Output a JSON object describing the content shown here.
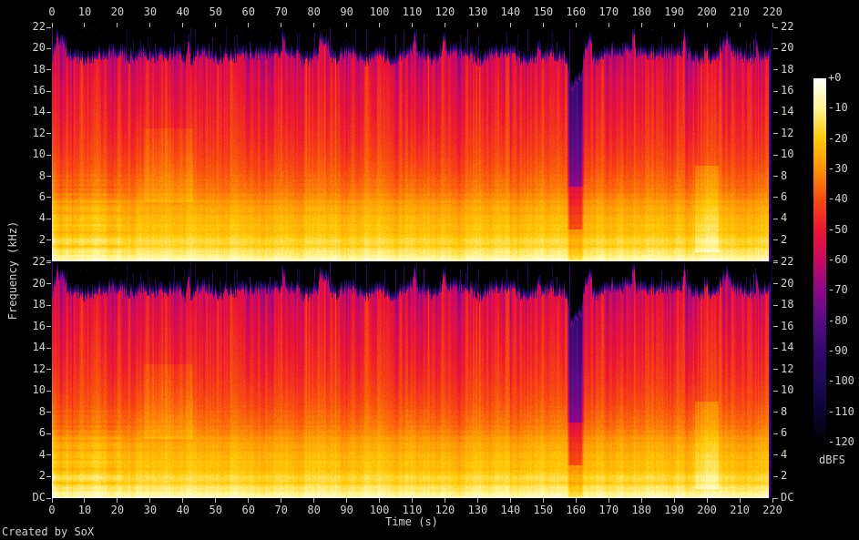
{
  "app": {
    "credit": "Created by SoX"
  },
  "axes": {
    "time": {
      "label": "Time (s)",
      "min": 0,
      "max": 220,
      "tick_step": 10,
      "ticks": [
        0,
        10,
        20,
        30,
        40,
        50,
        60,
        70,
        80,
        90,
        100,
        110,
        120,
        130,
        140,
        150,
        160,
        170,
        180,
        190,
        200,
        210,
        220
      ]
    },
    "frequency": {
      "label": "Frequency (kHz)",
      "min": 0,
      "max": 22,
      "tick_step": 2,
      "dc_label": "DC",
      "panel1_tick_labels": [
        "22",
        "20",
        "18",
        "16",
        "14",
        "12",
        "10",
        "8",
        "6",
        "4",
        "2"
      ],
      "panel2_tick_labels": [
        "22",
        "20",
        "18",
        "16",
        "14",
        "12",
        "10",
        "8",
        "6",
        "4",
        "2",
        "DC"
      ]
    }
  },
  "legend": {
    "unit": "dBFS",
    "ticks": [
      "+0",
      "-10",
      "-20",
      "-30",
      "-40",
      "-50",
      "-60",
      "-70",
      "-80",
      "-90",
      "-100",
      "-110",
      "-120"
    ]
  },
  "chart_data": {
    "type": "heatmap",
    "subtype": "stereo-audio-spectrogram",
    "generator": "SoX",
    "channels": [
      "channel-1",
      "channel-2"
    ],
    "x_axis": {
      "label": "Time (s)",
      "min": 0,
      "max": 220,
      "tick_step": 10
    },
    "y_axis": {
      "label": "Frequency (kHz)",
      "min": 0,
      "max": 22,
      "tick_step": 2,
      "dc_label": "DC"
    },
    "z_axis": {
      "label": "dBFS",
      "min": -120,
      "max": 0,
      "tick_step": 10
    },
    "palette_dbfs_colors": [
      {
        "db": -120,
        "color": "#000000"
      },
      {
        "db": -110,
        "color": "#0b0433"
      },
      {
        "db": -100,
        "color": "#1d0a52"
      },
      {
        "db": -90,
        "color": "#33076c"
      },
      {
        "db": -80,
        "color": "#560d82"
      },
      {
        "db": -70,
        "color": "#8b0789"
      },
      {
        "db": -60,
        "color": "#c90a64"
      },
      {
        "db": -50,
        "color": "#ec1633"
      },
      {
        "db": -40,
        "color": "#f84b10"
      },
      {
        "db": -30,
        "color": "#fd9106"
      },
      {
        "db": -20,
        "color": "#ffc908"
      },
      {
        "db": -10,
        "color": "#fff48e"
      },
      {
        "db": 0,
        "color": "#ffffff"
      }
    ],
    "spectral_profile_db_by_khz": [
      [
        0,
        -4
      ],
      [
        0.5,
        -11
      ],
      [
        1.5,
        -17
      ],
      [
        3,
        -22
      ],
      [
        4.5,
        -26
      ],
      [
        6,
        -31
      ],
      [
        7.5,
        -36
      ],
      [
        9,
        -40
      ],
      [
        11,
        -44
      ],
      [
        13,
        -47
      ],
      [
        15,
        -50
      ],
      [
        17,
        -53
      ],
      [
        18.5,
        -56
      ],
      [
        20,
        -59
      ],
      [
        22,
        -62
      ]
    ],
    "features": {
      "energy_ceiling_khz": 19.1,
      "quiet_gap_seconds": [
        158,
        162
      ],
      "ending_fade_second": 218.9,
      "intro_banded_bass_until_s": 20.5,
      "loud_low_mid_passage_s": [
        196.5,
        203.8
      ],
      "bright_mid_patch_s": [
        28,
        43
      ],
      "spike_density": 0.08
    }
  }
}
